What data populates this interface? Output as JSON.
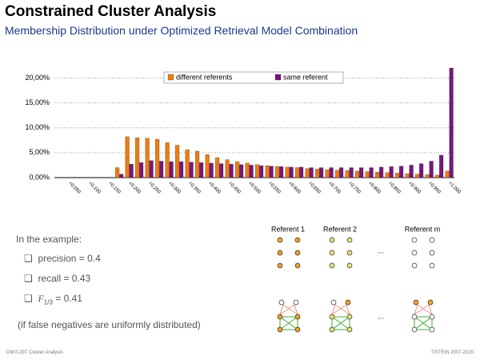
{
  "header": {
    "title": "Constrained Cluster Analysis",
    "subtitle": "Membership Distribution under Optimized Retrieval Model Combination"
  },
  "chart_data": {
    "type": "bar",
    "categories": [
      null,
      "<0.050",
      null,
      "<0.100",
      null,
      "<0.150",
      null,
      "<0.200",
      null,
      "<0.250",
      null,
      "<0.300",
      null,
      "<0.350",
      null,
      "<0.400",
      null,
      "<0.450",
      null,
      "<0.500",
      null,
      "<0.550",
      null,
      "<0.600",
      null,
      "<0.650",
      null,
      "<0.700",
      null,
      "<0.750",
      null,
      "<0.800",
      null,
      "<0.850",
      null,
      "<0.900",
      null,
      "<0.950",
      null,
      "<1.000"
    ],
    "series": [
      {
        "name": "different referents",
        "color": "#f07c0a",
        "values": [
          0,
          0,
          0,
          0,
          0,
          0,
          2.0,
          8.2,
          8.0,
          7.9,
          7.7,
          7.0,
          6.5,
          5.6,
          5.3,
          4.6,
          4.0,
          3.6,
          3.2,
          2.9,
          2.6,
          2.4,
          2.2,
          2.1,
          2.0,
          1.8,
          1.7,
          1.6,
          1.5,
          1.4,
          1.3,
          1.2,
          1.1,
          1.0,
          0.9,
          0.8,
          0.7,
          0.6,
          0.5,
          1.3
        ]
      },
      {
        "name": "same referent",
        "color": "#7a1480",
        "values": [
          0,
          0,
          0,
          0,
          0,
          0,
          0.7,
          2.7,
          3.0,
          3.4,
          3.3,
          3.2,
          3.2,
          3.1,
          3.0,
          2.9,
          2.8,
          2.7,
          2.6,
          2.5,
          2.4,
          2.3,
          2.2,
          2.1,
          2.1,
          2.0,
          2.0,
          2.0,
          2.0,
          2.0,
          2.0,
          2.0,
          2.1,
          2.2,
          2.3,
          2.5,
          2.8,
          3.3,
          4.5,
          22
        ]
      }
    ],
    "ylim": [
      0,
      22
    ],
    "yticks": [
      {
        "value": 0,
        "label": "0,00%"
      },
      {
        "value": 5,
        "label": "5,00%"
      },
      {
        "value": 10,
        "label": "10,00%"
      },
      {
        "value": 15,
        "label": "15,00%"
      },
      {
        "value": 20,
        "label": "20,00%"
      }
    ],
    "grid": true,
    "legend": "top"
  },
  "example": {
    "intro": "In the example:",
    "bullets": [
      "precision = 0.4",
      "recall = 0.43"
    ],
    "fscore": {
      "symbol": "F",
      "sub": "1/3",
      "rest": "= 0.41"
    },
    "note": "(if false negatives are uniformly distributed)"
  },
  "diagram": {
    "referents": [
      "Referent 1",
      "Referent 2",
      "Referent m"
    ],
    "ellipsis": "..."
  },
  "footer": {
    "left": "DM:II-297   Cluster Analysis",
    "right": "©STEIN 2007-2020"
  }
}
